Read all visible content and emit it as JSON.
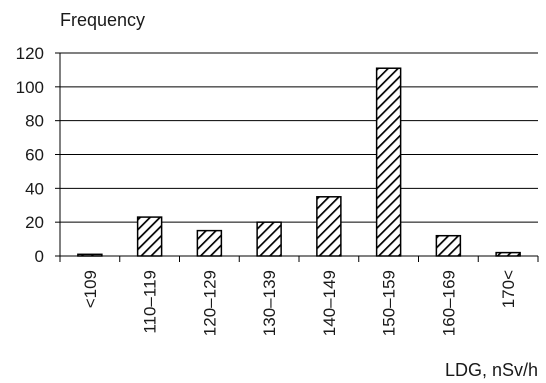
{
  "chart_data": {
    "type": "bar",
    "ylabel": "Frequency",
    "xlabel": "LDG, nSv/h",
    "categories": [
      "<109",
      "110–119",
      "120–129",
      "130–139",
      "140–149",
      "150–159",
      "160–169",
      "170<"
    ],
    "values": [
      1,
      23,
      15,
      20,
      35,
      111,
      12,
      2
    ],
    "ylim": [
      0,
      120
    ],
    "yticks": [
      0,
      20,
      40,
      60,
      80,
      100,
      120
    ],
    "grid": true,
    "bar_fill": "diagonal-hatch",
    "colors": {
      "bar_stroke": "#000000",
      "hatch": "#000000",
      "grid": "#000000"
    }
  }
}
